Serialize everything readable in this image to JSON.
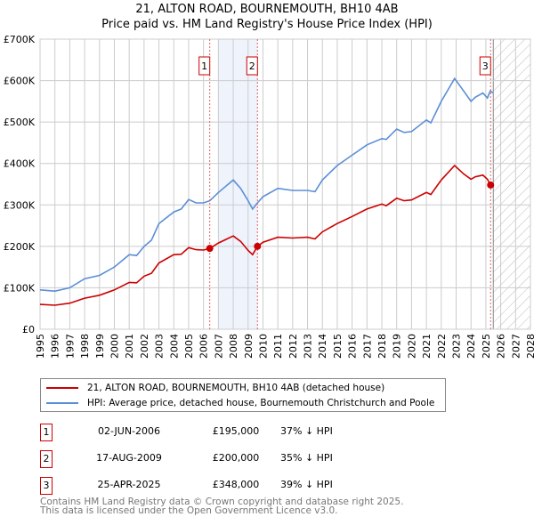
{
  "chart_data": {
    "type": "line",
    "title": "21, ALTON ROAD, BOURNEMOUTH, BH10 4AB",
    "subtitle": "Price paid vs. HM Land Registry's House Price Index (HPI)",
    "xlim": [
      1995,
      2028
    ],
    "ylim": [
      0,
      700000
    ],
    "x_ticks": [
      "1995",
      "1996",
      "1997",
      "1998",
      "1999",
      "2000",
      "2001",
      "2002",
      "2003",
      "2004",
      "2005",
      "2006",
      "2007",
      "2008",
      "2009",
      "2010",
      "2011",
      "2012",
      "2013",
      "2014",
      "2015",
      "2016",
      "2017",
      "2018",
      "2019",
      "2020",
      "2021",
      "2022",
      "2023",
      "2024",
      "2025",
      "2026",
      "2027",
      "2028"
    ],
    "y_ticks": [
      {
        "v": 0,
        "label": "£0"
      },
      {
        "v": 100000,
        "label": "£100K"
      },
      {
        "v": 200000,
        "label": "£200K"
      },
      {
        "v": 300000,
        "label": "£300K"
      },
      {
        "v": 400000,
        "label": "£400K"
      },
      {
        "v": 500000,
        "label": "£500K"
      },
      {
        "v": 600000,
        "label": "£600K"
      },
      {
        "v": 700000,
        "label": "£700K"
      }
    ],
    "grid": true,
    "shaded_period": [
      2007.0,
      2009.63
    ],
    "forecast_hatch_from": 2025.5,
    "series": [
      {
        "name": "21, ALTON ROAD, BOURNEMOUTH, BH10 4AB (detached house)",
        "color": "#cc0000",
        "x": [
          1995,
          1996,
          1997,
          1998,
          1999,
          2000,
          2001,
          2001.5,
          2002,
          2002.5,
          2003,
          2004,
          2004.5,
          2005,
          2005.5,
          2006,
          2006.42,
          2007,
          2008,
          2008.5,
          2009,
          2009.3,
          2009.63,
          2010,
          2011,
          2012,
          2013,
          2013.5,
          2014,
          2015,
          2016,
          2017,
          2018,
          2018.3,
          2019,
          2019.5,
          2020,
          2021,
          2021.3,
          2022,
          2022.9,
          2023.5,
          2024,
          2024.3,
          2024.8,
          2025.1,
          2025.32
        ],
        "y": [
          60000,
          58000,
          63000,
          75000,
          82000,
          95000,
          113000,
          112000,
          128000,
          135000,
          160000,
          180000,
          181000,
          197000,
          192000,
          191000,
          195000,
          208000,
          225000,
          212000,
          190000,
          180000,
          200000,
          210000,
          222000,
          220000,
          222000,
          218000,
          235000,
          255000,
          272000,
          290000,
          302000,
          298000,
          316000,
          310000,
          312000,
          330000,
          325000,
          360000,
          395000,
          375000,
          362000,
          368000,
          372000,
          362000,
          348000
        ]
      },
      {
        "name": "HPI: Average price, detached house, Bournemouth Christchurch and Poole",
        "color": "#5b8ed6",
        "x": [
          1995,
          1996,
          1997,
          1998,
          1999,
          2000,
          2001,
          2001.5,
          2002,
          2002.5,
          2003,
          2004,
          2004.5,
          2005,
          2005.5,
          2006,
          2006.42,
          2007,
          2008,
          2008.5,
          2009,
          2009.3,
          2009.63,
          2010,
          2011,
          2012,
          2013,
          2013.5,
          2014,
          2015,
          2016,
          2017,
          2018,
          2018.3,
          2019,
          2019.5,
          2020,
          2021,
          2021.3,
          2022,
          2022.9,
          2023.5,
          2024,
          2024.3,
          2024.8,
          2025.1,
          2025.3,
          2025.5
        ],
        "y": [
          95000,
          92000,
          100000,
          122000,
          130000,
          150000,
          180000,
          178000,
          200000,
          215000,
          255000,
          283000,
          290000,
          313000,
          305000,
          305000,
          310000,
          330000,
          360000,
          340000,
          310000,
          290000,
          305000,
          320000,
          340000,
          335000,
          335000,
          332000,
          360000,
          395000,
          420000,
          445000,
          460000,
          458000,
          483000,
          475000,
          477000,
          505000,
          498000,
          550000,
          605000,
          575000,
          550000,
          560000,
          570000,
          558000,
          575000,
          570000
        ]
      }
    ],
    "sales": [
      {
        "label": "1",
        "x": 2006.42,
        "y": 195000
      },
      {
        "label": "2",
        "x": 2009.63,
        "y": 200000
      },
      {
        "label": "3",
        "x": 2025.32,
        "y": 348000
      }
    ]
  },
  "legend": {
    "property": "21, ALTON ROAD, BOURNEMOUTH, BH10 4AB (detached house)",
    "hpi": "HPI: Average price, detached house, Bournemouth Christchurch and Poole"
  },
  "transactions": [
    {
      "num": "1",
      "date": "02-JUN-2006",
      "price": "£195,000",
      "pct": "37% ↓ HPI"
    },
    {
      "num": "2",
      "date": "17-AUG-2009",
      "price": "£200,000",
      "pct": "35% ↓ HPI"
    },
    {
      "num": "3",
      "date": "25-APR-2025",
      "price": "£348,000",
      "pct": "39% ↓ HPI"
    }
  ],
  "footer": {
    "line1": "Contains HM Land Registry data © Crown copyright and database right 2025.",
    "line2": "This data is licensed under the Open Government Licence v3.0."
  }
}
